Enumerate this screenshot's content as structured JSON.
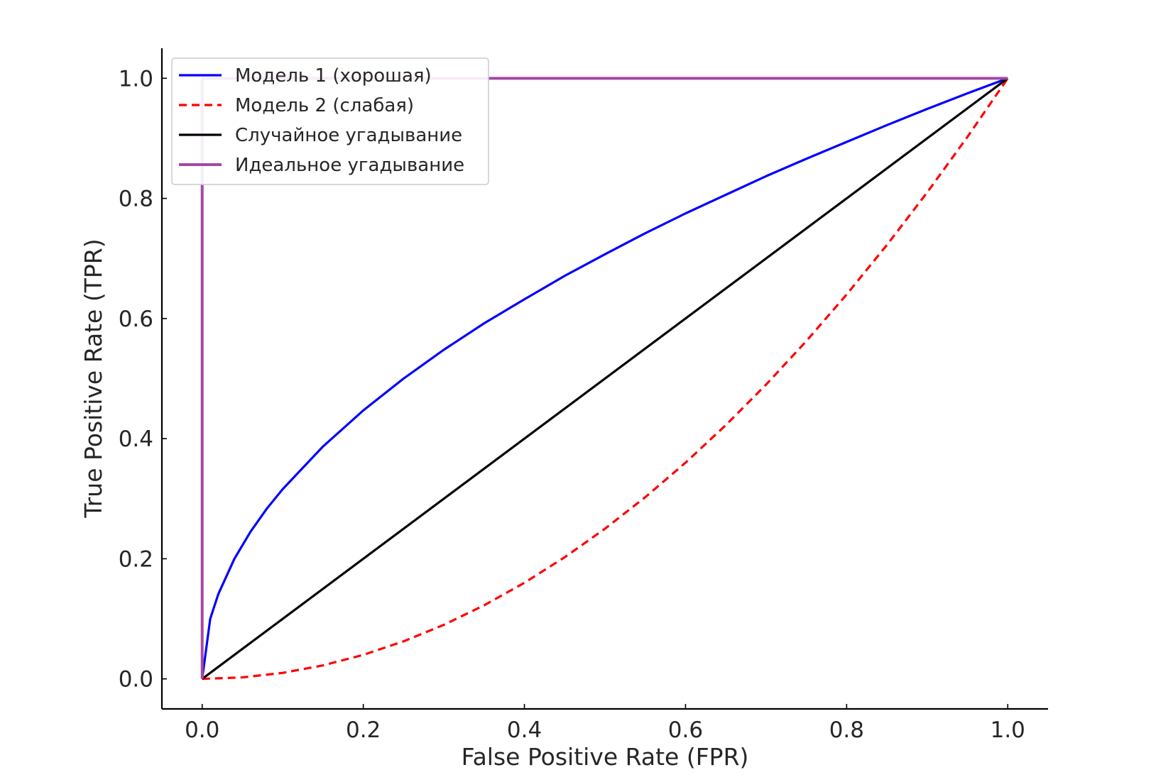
{
  "chart_data": {
    "type": "line",
    "title": "",
    "xlabel": "False Positive Rate (FPR)",
    "ylabel": "True Positive Rate (TPR)",
    "xlim": [
      -0.05,
      1.05
    ],
    "ylim": [
      -0.05,
      1.05
    ],
    "xticks": [
      0.0,
      0.2,
      0.4,
      0.6,
      0.8,
      1.0
    ],
    "yticks": [
      0.0,
      0.2,
      0.4,
      0.6,
      0.8,
      1.0
    ],
    "xtick_labels": [
      "0.0",
      "0.2",
      "0.4",
      "0.6",
      "0.8",
      "1.0"
    ],
    "ytick_labels": [
      "0.0",
      "0.2",
      "0.4",
      "0.6",
      "0.8",
      "1.0"
    ],
    "grid": false,
    "legend_position": "upper left",
    "series": [
      {
        "name": "Модель 1 (хорошая)",
        "color": "#0000ff",
        "style": "solid",
        "x": [
          0.0,
          0.01,
          0.02,
          0.04,
          0.06,
          0.08,
          0.1,
          0.15,
          0.2,
          0.25,
          0.3,
          0.35,
          0.4,
          0.45,
          0.5,
          0.55,
          0.6,
          0.65,
          0.7,
          0.75,
          0.8,
          0.85,
          0.9,
          0.95,
          1.0
        ],
        "y": [
          0.0,
          0.1,
          0.141,
          0.2,
          0.245,
          0.283,
          0.316,
          0.387,
          0.447,
          0.5,
          0.548,
          0.592,
          0.632,
          0.671,
          0.707,
          0.742,
          0.775,
          0.806,
          0.837,
          0.866,
          0.894,
          0.922,
          0.949,
          0.975,
          1.0
        ]
      },
      {
        "name": "Модель 2 (слабая)",
        "color": "#ff0000",
        "style": "dashed",
        "x": [
          0.0,
          0.05,
          0.1,
          0.15,
          0.2,
          0.25,
          0.3,
          0.35,
          0.4,
          0.45,
          0.5,
          0.55,
          0.6,
          0.65,
          0.7,
          0.75,
          0.8,
          0.85,
          0.9,
          0.95,
          1.0
        ],
        "y": [
          0.0,
          0.0025,
          0.01,
          0.0225,
          0.04,
          0.0625,
          0.09,
          0.1225,
          0.16,
          0.2025,
          0.25,
          0.3025,
          0.36,
          0.4225,
          0.49,
          0.5625,
          0.64,
          0.7225,
          0.81,
          0.9025,
          1.0
        ]
      },
      {
        "name": "Случайное угадывание",
        "color": "#000000",
        "style": "solid",
        "x": [
          0.0,
          1.0
        ],
        "y": [
          0.0,
          1.0
        ]
      },
      {
        "name": "Идеальное угадывание",
        "color": "#a349a4",
        "style": "solid",
        "x": [
          0.0,
          0.0,
          1.0
        ],
        "y": [
          0.0,
          1.0,
          1.0
        ]
      }
    ]
  }
}
